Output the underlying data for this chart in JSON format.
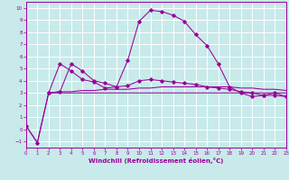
{
  "xlabel": "Windchill (Refroidissement éolien,°C)",
  "background_color": "#c8eaea",
  "grid_color": "#ffffff",
  "line_color": "#990099",
  "x_min": 0,
  "x_max": 23,
  "y_min": -1.5,
  "y_max": 10.5,
  "x_ticks": [
    0,
    1,
    2,
    3,
    4,
    5,
    6,
    7,
    8,
    9,
    10,
    11,
    12,
    13,
    14,
    15,
    16,
    17,
    18,
    19,
    20,
    21,
    22,
    23
  ],
  "y_ticks": [
    -1,
    0,
    1,
    2,
    3,
    4,
    5,
    6,
    7,
    8,
    9,
    10
  ],
  "series1_x": [
    0,
    1,
    2,
    3,
    4,
    5,
    6,
    7,
    8,
    9,
    10,
    11,
    12,
    13,
    14,
    15,
    16,
    17,
    18,
    19,
    20,
    21,
    22,
    23
  ],
  "series1_y": [
    0.3,
    -1.1,
    3.0,
    3.0,
    3.0,
    3.0,
    3.0,
    3.0,
    3.0,
    3.0,
    3.0,
    3.0,
    3.0,
    3.0,
    3.0,
    3.0,
    3.0,
    3.0,
    3.0,
    3.0,
    3.0,
    3.0,
    3.0,
    3.0
  ],
  "series2_x": [
    0,
    1,
    2,
    3,
    4,
    5,
    6,
    7,
    8,
    9,
    10,
    11,
    12,
    13,
    14,
    15,
    16,
    17,
    18,
    19,
    20,
    21,
    22,
    23
  ],
  "series2_y": [
    0.3,
    -1.1,
    3.0,
    5.4,
    4.8,
    4.1,
    3.9,
    3.4,
    3.5,
    5.7,
    8.9,
    9.8,
    9.7,
    9.4,
    8.9,
    7.8,
    6.9,
    5.4,
    3.5,
    3.0,
    2.7,
    2.8,
    3.0,
    2.7
  ],
  "series3_x": [
    2,
    3,
    4,
    5,
    6,
    7,
    8,
    9,
    10,
    11,
    12,
    13,
    14,
    15,
    16,
    17,
    18,
    19,
    20,
    21,
    22,
    23
  ],
  "series3_y": [
    3.0,
    3.1,
    3.1,
    3.2,
    3.2,
    3.3,
    3.3,
    3.3,
    3.4,
    3.4,
    3.5,
    3.5,
    3.5,
    3.5,
    3.5,
    3.5,
    3.5,
    3.4,
    3.4,
    3.3,
    3.3,
    3.2
  ],
  "series4_x": [
    2,
    3,
    4,
    5,
    6,
    7,
    8,
    9,
    10,
    11,
    12,
    13,
    14,
    15,
    16,
    17,
    18,
    19,
    20,
    21,
    22,
    23
  ],
  "series4_y": [
    3.0,
    3.1,
    5.4,
    4.8,
    4.0,
    3.8,
    3.5,
    3.6,
    4.0,
    4.1,
    4.0,
    3.9,
    3.8,
    3.7,
    3.5,
    3.4,
    3.3,
    3.1,
    3.0,
    2.8,
    2.8,
    2.7
  ]
}
